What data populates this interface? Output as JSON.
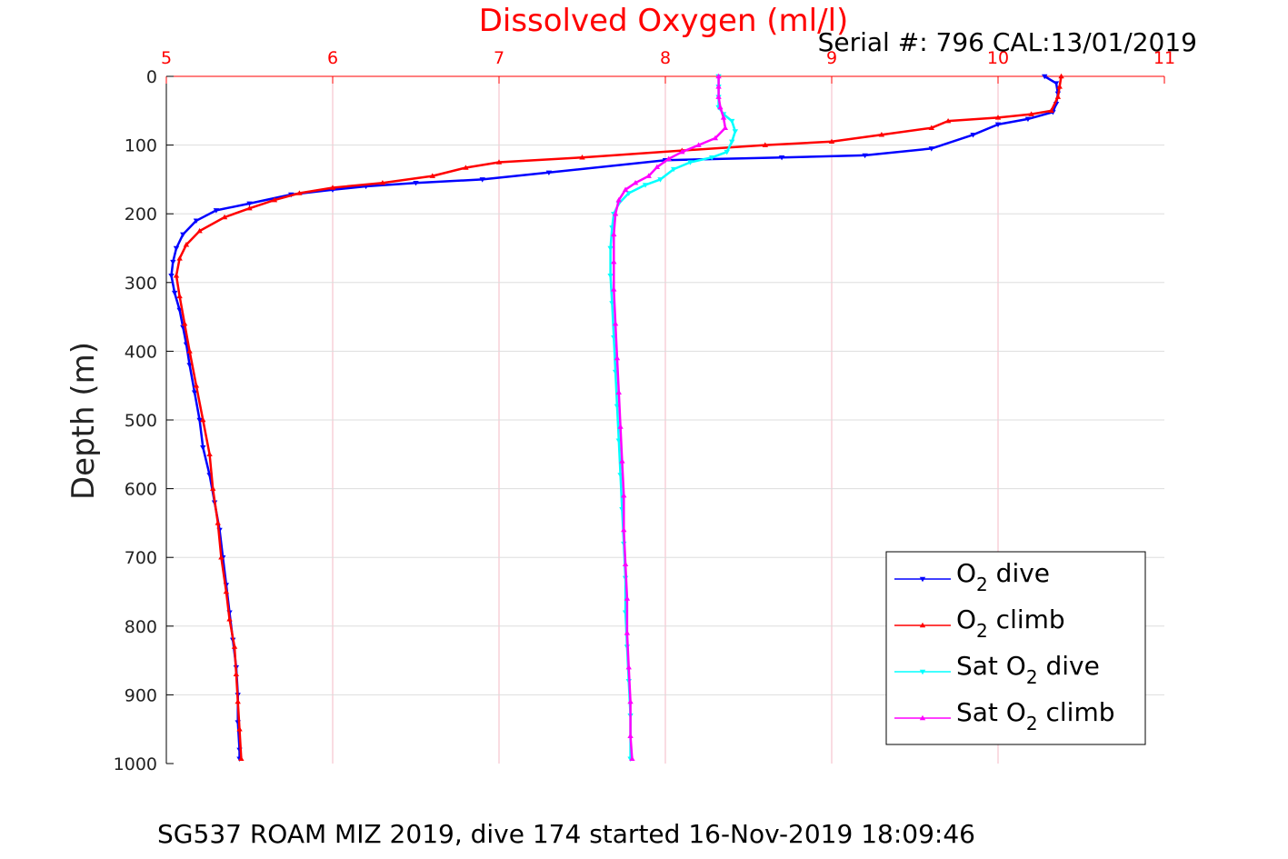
{
  "colors": {
    "background": "#ffffff",
    "vgrid": "#f4b8c4",
    "hgrid": "#dddddd",
    "axis_top": "#ff0000",
    "axis_left": "#000000",
    "o2_dive": "#0000ff",
    "o2_climb": "#ff0000",
    "sat_dive": "#00ffff",
    "sat_climb": "#ff00ff"
  },
  "chart_data": {
    "type": "line",
    "title": "Dissolved Oxygen (ml/l)",
    "serial_text": "Serial #: 796  CAL:13/01/2019",
    "footer": "SG537 ROAM MIZ 2019, dive 174 started 16-Nov-2019 18:09:46",
    "xlabel": "Dissolved Oxygen (ml/l)",
    "ylabel": "Depth (m)",
    "xlim": [
      5,
      11
    ],
    "ylim": [
      0,
      1000
    ],
    "y_reversed": true,
    "x_axis_location": "top",
    "xticks": [
      "5",
      "6",
      "7",
      "8",
      "9",
      "10",
      "11"
    ],
    "yticks": [
      "0",
      "100",
      "200",
      "300",
      "400",
      "500",
      "600",
      "700",
      "800",
      "900",
      "1000"
    ],
    "grid": true,
    "legend_position": "bottom-right",
    "legend": [
      {
        "prefix": "O",
        "sub": "2",
        "suffix": " dive"
      },
      {
        "prefix": "O",
        "sub": "2",
        "suffix": " climb"
      },
      {
        "prefix": "Sat O",
        "sub": "2",
        "suffix": " dive"
      },
      {
        "prefix": "Sat O",
        "sub": "2",
        "suffix": " climb"
      }
    ],
    "series": [
      {
        "marker": "triangle-down",
        "points": [
          [
            10.28,
            0
          ],
          [
            10.35,
            10
          ],
          [
            10.36,
            25
          ],
          [
            10.35,
            40
          ],
          [
            10.33,
            52
          ],
          [
            10.18,
            62
          ],
          [
            10.0,
            70
          ],
          [
            9.85,
            85
          ],
          [
            9.6,
            105
          ],
          [
            9.2,
            115
          ],
          [
            8.7,
            118
          ],
          [
            8.0,
            122
          ],
          [
            7.3,
            140
          ],
          [
            6.9,
            150
          ],
          [
            6.5,
            155
          ],
          [
            6.2,
            160
          ],
          [
            6.0,
            165
          ],
          [
            5.75,
            172
          ],
          [
            5.5,
            185
          ],
          [
            5.3,
            195
          ],
          [
            5.18,
            210
          ],
          [
            5.1,
            230
          ],
          [
            5.06,
            250
          ],
          [
            5.04,
            270
          ],
          [
            5.03,
            290
          ],
          [
            5.05,
            315
          ],
          [
            5.08,
            340
          ],
          [
            5.1,
            365
          ],
          [
            5.12,
            390
          ],
          [
            5.14,
            420
          ],
          [
            5.17,
            460
          ],
          [
            5.2,
            500
          ],
          [
            5.22,
            540
          ],
          [
            5.26,
            580
          ],
          [
            5.29,
            620
          ],
          [
            5.32,
            660
          ],
          [
            5.34,
            700
          ],
          [
            5.36,
            740
          ],
          [
            5.38,
            780
          ],
          [
            5.4,
            820
          ],
          [
            5.42,
            860
          ],
          [
            5.43,
            900
          ],
          [
            5.43,
            940
          ],
          [
            5.44,
            980
          ],
          [
            5.44,
            993
          ]
        ]
      },
      {
        "marker": "triangle-up",
        "points": [
          [
            10.38,
            0
          ],
          [
            10.37,
            15
          ],
          [
            10.36,
            30
          ],
          [
            10.32,
            50
          ],
          [
            10.2,
            55
          ],
          [
            10.0,
            60
          ],
          [
            9.7,
            65
          ],
          [
            9.6,
            75
          ],
          [
            9.3,
            85
          ],
          [
            9.0,
            95
          ],
          [
            8.6,
            100
          ],
          [
            8.1,
            108
          ],
          [
            7.5,
            118
          ],
          [
            7.0,
            125
          ],
          [
            6.8,
            133
          ],
          [
            6.6,
            145
          ],
          [
            6.3,
            155
          ],
          [
            6.0,
            162
          ],
          [
            5.8,
            170
          ],
          [
            5.65,
            180
          ],
          [
            5.5,
            192
          ],
          [
            5.35,
            205
          ],
          [
            5.2,
            225
          ],
          [
            5.12,
            245
          ],
          [
            5.08,
            265
          ],
          [
            5.06,
            290
          ],
          [
            5.08,
            320
          ],
          [
            5.11,
            360
          ],
          [
            5.14,
            400
          ],
          [
            5.18,
            450
          ],
          [
            5.22,
            500
          ],
          [
            5.26,
            550
          ],
          [
            5.28,
            600
          ],
          [
            5.31,
            650
          ],
          [
            5.33,
            700
          ],
          [
            5.36,
            750
          ],
          [
            5.38,
            790
          ],
          [
            5.41,
            830
          ],
          [
            5.42,
            870
          ],
          [
            5.43,
            910
          ],
          [
            5.44,
            950
          ],
          [
            5.45,
            993
          ]
        ]
      },
      {
        "marker": "triangle-down",
        "points": [
          [
            8.32,
            0
          ],
          [
            8.32,
            15
          ],
          [
            8.32,
            30
          ],
          [
            8.32,
            45
          ],
          [
            8.35,
            55
          ],
          [
            8.4,
            65
          ],
          [
            8.42,
            80
          ],
          [
            8.4,
            95
          ],
          [
            8.37,
            110
          ],
          [
            8.28,
            118
          ],
          [
            8.15,
            125
          ],
          [
            8.05,
            135
          ],
          [
            7.97,
            150
          ],
          [
            7.88,
            158
          ],
          [
            7.78,
            170
          ],
          [
            7.72,
            185
          ],
          [
            7.69,
            200
          ],
          [
            7.68,
            220
          ],
          [
            7.67,
            250
          ],
          [
            7.67,
            290
          ],
          [
            7.68,
            330
          ],
          [
            7.69,
            380
          ],
          [
            7.7,
            430
          ],
          [
            7.71,
            480
          ],
          [
            7.72,
            530
          ],
          [
            7.73,
            580
          ],
          [
            7.74,
            630
          ],
          [
            7.75,
            680
          ],
          [
            7.76,
            730
          ],
          [
            7.76,
            780
          ],
          [
            7.77,
            830
          ],
          [
            7.78,
            880
          ],
          [
            7.79,
            930
          ],
          [
            7.79,
            993
          ]
        ]
      },
      {
        "marker": "triangle-up",
        "points": [
          [
            8.32,
            0
          ],
          [
            8.32,
            15
          ],
          [
            8.32,
            30
          ],
          [
            8.33,
            45
          ],
          [
            8.35,
            60
          ],
          [
            8.36,
            75
          ],
          [
            8.3,
            90
          ],
          [
            8.2,
            100
          ],
          [
            8.1,
            110
          ],
          [
            8.02,
            120
          ],
          [
            7.95,
            132
          ],
          [
            7.9,
            145
          ],
          [
            7.82,
            155
          ],
          [
            7.76,
            165
          ],
          [
            7.72,
            180
          ],
          [
            7.7,
            200
          ],
          [
            7.69,
            230
          ],
          [
            7.69,
            270
          ],
          [
            7.69,
            310
          ],
          [
            7.7,
            360
          ],
          [
            7.71,
            410
          ],
          [
            7.72,
            460
          ],
          [
            7.73,
            510
          ],
          [
            7.74,
            560
          ],
          [
            7.75,
            610
          ],
          [
            7.75,
            660
          ],
          [
            7.76,
            710
          ],
          [
            7.77,
            760
          ],
          [
            7.77,
            810
          ],
          [
            7.78,
            860
          ],
          [
            7.79,
            910
          ],
          [
            7.79,
            960
          ],
          [
            7.8,
            993
          ]
        ]
      }
    ]
  }
}
